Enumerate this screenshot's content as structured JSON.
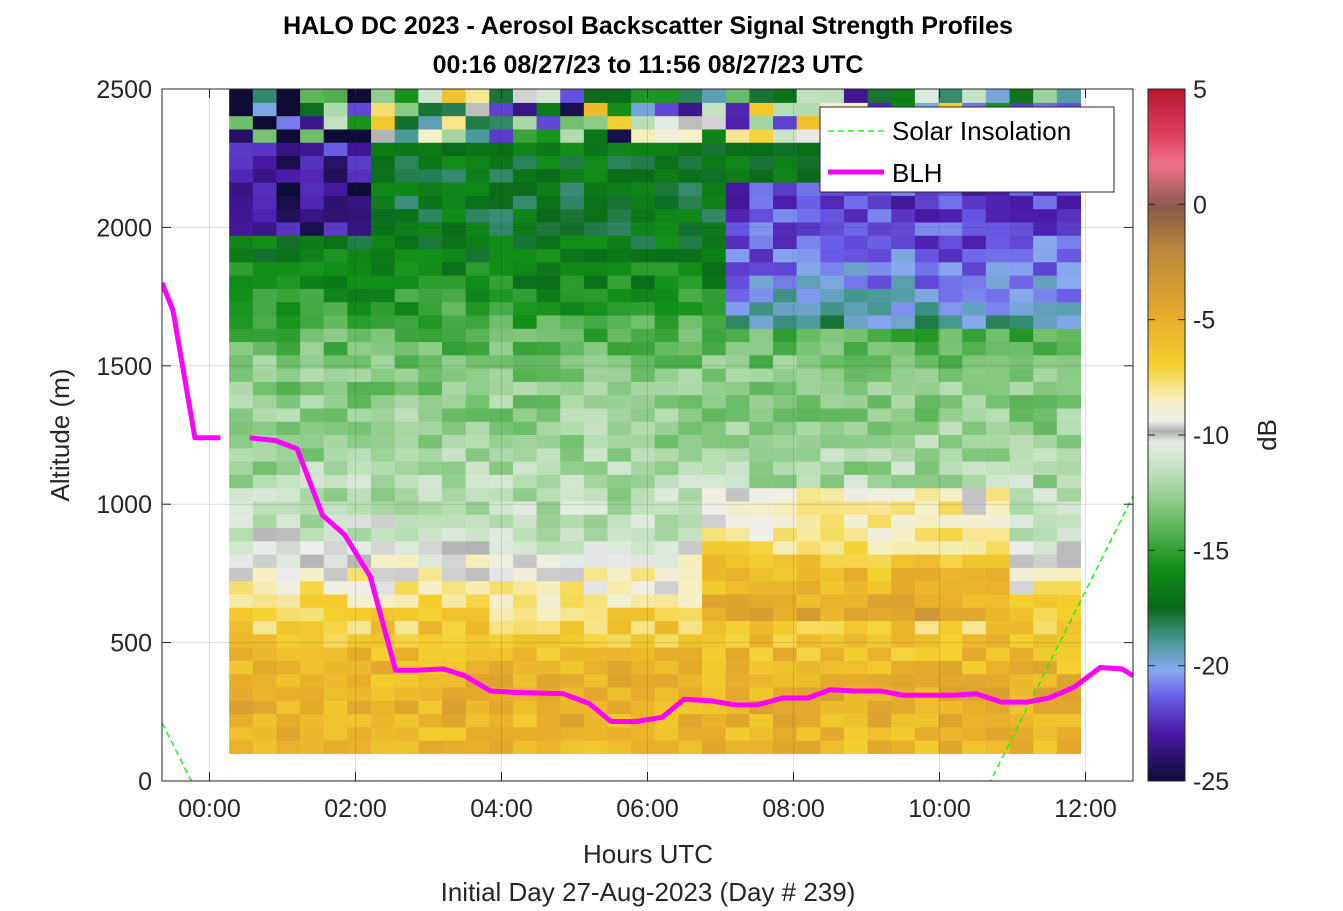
{
  "chart_data": {
    "type": "heatmap",
    "title": "HALO DC 2023 - Aerosol Backscatter Signal Strength Profiles",
    "subtitle": "00:16 08/27/23 to 11:56 08/27/23  UTC",
    "xlabel": "Hours UTC",
    "x_sublabel": "Initial Day 27-Aug-2023 (Day # 239)",
    "ylabel": "Altitude (m)",
    "colorbar_label": "dB",
    "x_ticks": [
      "00:00",
      "02:00",
      "04:00",
      "06:00",
      "08:00",
      "10:00",
      "12:00"
    ],
    "y_ticks": [
      "0",
      "500",
      "1000",
      "1500",
      "2000",
      "2500"
    ],
    "colorbar_ticks": [
      "5",
      "0",
      "-5",
      "-10",
      "-15",
      "-20",
      "-25"
    ],
    "xlim_hours": [
      -0.65,
      12.65
    ],
    "ylim_m": [
      0,
      2500
    ],
    "clim_db": [
      -25,
      5
    ],
    "grid": true,
    "legend_position": "top-right",
    "legend": [
      {
        "label": "Solar Insolation",
        "style": "dashed",
        "color": "#00ff00"
      },
      {
        "label": "BLH",
        "style": "solid",
        "color": "#ff00ff"
      }
    ],
    "heatmap_time_range_hours": [
      0.27,
      11.93
    ],
    "heatmap_altitude_range_m": [
      100,
      2500
    ],
    "heatmap_db_profile": [
      {
        "altitude_m": 150,
        "db": -5.6
      },
      {
        "altitude_m": 300,
        "db": -5.2
      },
      {
        "altitude_m": 450,
        "db": -5.8
      },
      {
        "altitude_m": 600,
        "db": -7.2
      },
      {
        "altitude_m": 750,
        "db": -9.0
      },
      {
        "altitude_m": 900,
        "db": -11.2
      },
      {
        "altitude_m": 1050,
        "db": -12.0
      },
      {
        "altitude_m": 1200,
        "db": -12.5
      },
      {
        "altitude_m": 1350,
        "db": -12.8
      },
      {
        "altitude_m": 1500,
        "db": -13.2
      },
      {
        "altitude_m": 1650,
        "db": -14.5
      },
      {
        "altitude_m": 1800,
        "db": -16.0
      },
      {
        "altitude_m": 1950,
        "db": -17.0
      },
      {
        "altitude_m": 2100,
        "db": -17.5
      },
      {
        "altitude_m": 2250,
        "db": -17.0
      },
      {
        "altitude_m": 2400,
        "db": -15.0
      }
    ],
    "blh_series": {
      "name": "BLH",
      "x_hours": [
        -0.65,
        -0.5,
        -0.2,
        0.15,
        0.55,
        0.9,
        1.2,
        1.55,
        1.85,
        2.2,
        2.55,
        2.85,
        3.2,
        3.5,
        3.85,
        4.2,
        4.5,
        4.85,
        5.2,
        5.5,
        5.85,
        6.2,
        6.5,
        6.85,
        7.2,
        7.5,
        7.85,
        8.2,
        8.5,
        8.85,
        9.2,
        9.5,
        9.85,
        10.2,
        10.5,
        10.85,
        11.2,
        11.5,
        11.85,
        12.2,
        12.5,
        12.65
      ],
      "y_m": [
        1800,
        1700,
        1240,
        1240,
        1240,
        1230,
        1200,
        960,
        890,
        740,
        400,
        400,
        405,
        380,
        325,
        320,
        318,
        315,
        280,
        215,
        215,
        230,
        295,
        290,
        275,
        275,
        300,
        300,
        330,
        325,
        325,
        310,
        310,
        310,
        315,
        285,
        285,
        300,
        340,
        410,
        405,
        380
      ],
      "gaps_hours": [
        [
          0.15,
          0.55
        ]
      ]
    },
    "solar_insolation_series": {
      "name": "Solar Insolation",
      "x_hours": [
        -0.65,
        -0.25,
        10.7,
        12.65
      ],
      "y_m": [
        210,
        0,
        0,
        1030
      ]
    }
  }
}
